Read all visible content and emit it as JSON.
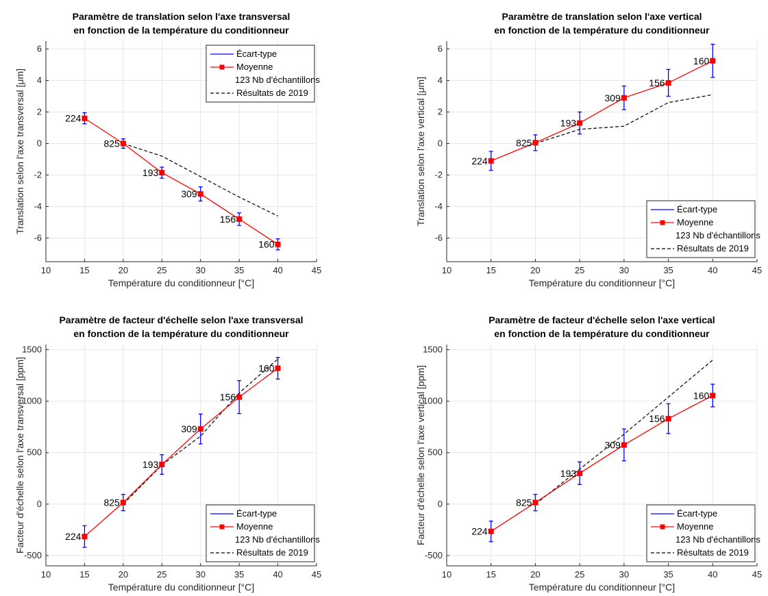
{
  "chart_data": [
    {
      "type": "line",
      "title": [
        "Paramètre de translation selon l'axe transversal",
        "en fonction de la température du conditionneur"
      ],
      "xlabel": "Température du conditionneur [°C]",
      "ylabel": "Translation selon l'axe transversal [μm]",
      "xlim": [
        10,
        45
      ],
      "ylim": [
        -7.5,
        6.5
      ],
      "xticks": [
        10,
        15,
        20,
        25,
        30,
        35,
        40,
        45
      ],
      "yticks": [
        -6,
        -4,
        -2,
        0,
        2,
        4,
        6
      ],
      "x": [
        15,
        20,
        25,
        30,
        35,
        40
      ],
      "series": [
        {
          "name": "Moyenne",
          "values": [
            1.6,
            0.0,
            -1.85,
            -3.2,
            -4.8,
            -6.4
          ]
        },
        {
          "name": "Écart-type",
          "values": [
            0.35,
            0.3,
            0.35,
            0.45,
            0.4,
            0.35
          ]
        },
        {
          "name": "Résultats de 2019",
          "x": [
            20,
            25,
            30,
            35,
            40
          ],
          "values": [
            0.0,
            -0.8,
            -2.1,
            -3.4,
            -4.6
          ]
        }
      ],
      "point_labels": [
        "224",
        "825",
        "193",
        "309",
        "156",
        "160"
      ],
      "legend_count_label": "123 Nb d'échantillons",
      "legend_position": "top-right",
      "grid": true
    },
    {
      "type": "line",
      "title": [
        "Paramètre de translation selon l'axe vertical",
        "en fonction de la température du conditionneur"
      ],
      "xlabel": "Température du conditionneur [°C]",
      "ylabel": "Translation selon l'axe vertical [μm]",
      "xlim": [
        10,
        45
      ],
      "ylim": [
        -7.5,
        6.5
      ],
      "xticks": [
        10,
        15,
        20,
        25,
        30,
        35,
        40,
        45
      ],
      "yticks": [
        -6,
        -4,
        -2,
        0,
        2,
        4,
        6
      ],
      "x": [
        15,
        20,
        25,
        30,
        35,
        40
      ],
      "series": [
        {
          "name": "Moyenne",
          "values": [
            -1.1,
            0.05,
            1.3,
            2.9,
            3.85,
            5.25
          ]
        },
        {
          "name": "Écart-type",
          "values": [
            0.6,
            0.5,
            0.7,
            0.75,
            0.85,
            1.05
          ]
        },
        {
          "name": "Résultats de 2019",
          "x": [
            20,
            25,
            30,
            35,
            40
          ],
          "values": [
            0.0,
            0.9,
            1.1,
            2.6,
            3.1
          ]
        }
      ],
      "point_labels": [
        "224",
        "825",
        "193",
        "309",
        "156",
        "160"
      ],
      "legend_count_label": "123 Nb d'échantillons",
      "legend_position": "bottom-right",
      "grid": true
    },
    {
      "type": "line",
      "title": [
        "Paramètre de facteur d'échelle selon l'axe transversal",
        "en fonction de la température du conditionneur"
      ],
      "xlabel": "Température du conditionneur [°C]",
      "ylabel": "Facteur d'échelle selon l'axe transversal [ppm]",
      "xlim": [
        10,
        45
      ],
      "ylim": [
        -600,
        1550
      ],
      "xticks": [
        10,
        15,
        20,
        25,
        30,
        35,
        40,
        45
      ],
      "yticks": [
        -500,
        0,
        500,
        1000,
        1500
      ],
      "x": [
        15,
        20,
        25,
        30,
        35,
        40
      ],
      "series": [
        {
          "name": "Moyenne",
          "values": [
            -315,
            15,
            385,
            730,
            1040,
            1320
          ]
        },
        {
          "name": "Écart-type",
          "values": [
            105,
            80,
            95,
            145,
            160,
            105
          ]
        },
        {
          "name": "Résultats de 2019",
          "x": [
            20,
            25,
            30,
            35,
            40
          ],
          "values": [
            0,
            380,
            660,
            1080,
            1410
          ]
        }
      ],
      "point_labels": [
        "224",
        "825",
        "193",
        "309",
        "156",
        "160"
      ],
      "legend_count_label": "123 Nb d'échantillons",
      "legend_position": "bottom-right",
      "grid": true
    },
    {
      "type": "line",
      "title": [
        "Paramètre de facteur d'échelle selon l'axe vertical",
        "en fonction de la température du conditionneur"
      ],
      "xlabel": "Température du conditionneur [°C]",
      "ylabel": "Facteur d'échelle selon l'axe vertical [ppm]",
      "xlim": [
        10,
        45
      ],
      "ylim": [
        -600,
        1550
      ],
      "xticks": [
        10,
        15,
        20,
        25,
        30,
        35,
        40,
        45
      ],
      "yticks": [
        -500,
        0,
        500,
        1000,
        1500
      ],
      "x": [
        15,
        20,
        25,
        30,
        35,
        40
      ],
      "series": [
        {
          "name": "Moyenne",
          "values": [
            -265,
            15,
            300,
            575,
            830,
            1055
          ]
        },
        {
          "name": "Écart-type",
          "values": [
            100,
            80,
            110,
            155,
            145,
            110
          ]
        },
        {
          "name": "Résultats de 2019",
          "x": [
            20,
            25,
            30,
            35,
            40
          ],
          "values": [
            0,
            340,
            680,
            1040,
            1400
          ]
        }
      ],
      "point_labels": [
        "224",
        "825",
        "193",
        "309",
        "156",
        "160"
      ],
      "legend_count_label": "123 Nb d'échantillons",
      "legend_position": "bottom-right",
      "grid": true
    }
  ],
  "colors": {
    "mean": "#ff0000",
    "errorbar": "#0000ff",
    "reference": "#000000",
    "grid": "#e6e6e6",
    "axis": "#262626"
  }
}
